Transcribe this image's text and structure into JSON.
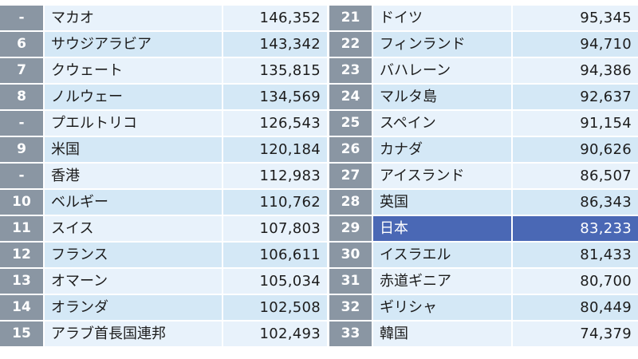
{
  "table": {
    "rows": [
      {
        "left": {
          "rank": "-",
          "country": "マカオ",
          "value": "146,352"
        },
        "right": {
          "rank": "21",
          "country": "ドイツ",
          "value": "95,345"
        }
      },
      {
        "left": {
          "rank": "6",
          "country": "サウジアラビア",
          "value": "143,342"
        },
        "right": {
          "rank": "22",
          "country": "フィンランド",
          "value": "94,710"
        }
      },
      {
        "left": {
          "rank": "7",
          "country": "クウェート",
          "value": "135,815"
        },
        "right": {
          "rank": "23",
          "country": "バハレーン",
          "value": "94,386"
        }
      },
      {
        "left": {
          "rank": "8",
          "country": "ノルウェー",
          "value": "134,569"
        },
        "right": {
          "rank": "24",
          "country": "マルタ島",
          "value": "92,637"
        }
      },
      {
        "left": {
          "rank": "-",
          "country": "プエルトリコ",
          "value": "126,543"
        },
        "right": {
          "rank": "25",
          "country": "スペイン",
          "value": "91,154"
        }
      },
      {
        "left": {
          "rank": "9",
          "country": "米国",
          "value": "120,184"
        },
        "right": {
          "rank": "26",
          "country": "カナダ",
          "value": "90,626"
        }
      },
      {
        "left": {
          "rank": "-",
          "country": "香港",
          "value": "112,983"
        },
        "right": {
          "rank": "27",
          "country": "アイスランド",
          "value": "86,507"
        }
      },
      {
        "left": {
          "rank": "10",
          "country": "ベルギー",
          "value": "110,762"
        },
        "right": {
          "rank": "28",
          "country": "英国",
          "value": "86,343"
        }
      },
      {
        "left": {
          "rank": "11",
          "country": "スイス",
          "value": "107,803"
        },
        "right": {
          "rank": "29",
          "country": "日本",
          "value": "83,233"
        }
      },
      {
        "left": {
          "rank": "12",
          "country": "フランス",
          "value": "106,611"
        },
        "right": {
          "rank": "30",
          "country": "イスラエル",
          "value": "81,433"
        }
      },
      {
        "left": {
          "rank": "13",
          "country": "オマーン",
          "value": "105,034"
        },
        "right": {
          "rank": "31",
          "country": "赤道ギニア",
          "value": "80,700"
        }
      },
      {
        "left": {
          "rank": "14",
          "country": "オランダ",
          "value": "102,508"
        },
        "right": {
          "rank": "32",
          "country": "ギリシャ",
          "value": "80,449"
        }
      },
      {
        "left": {
          "rank": "15",
          "country": "アラブ首長国連邦",
          "value": "102,493"
        },
        "right": {
          "rank": "33",
          "country": "韓国",
          "value": "74,379"
        }
      }
    ],
    "highlighted": "日本"
  },
  "colors": {
    "rank_bg": "#8a96a3",
    "row_light": "#e8f2fb",
    "row_dark": "#d4e8f6",
    "highlight": "#4a68b5"
  }
}
